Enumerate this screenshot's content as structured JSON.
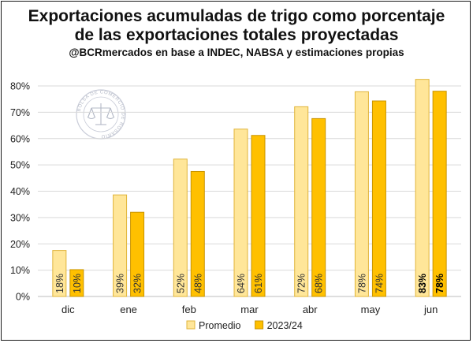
{
  "chart_data": {
    "type": "bar",
    "title_lines": [
      "Exportaciones acumuladas de trigo como porcentaje",
      "de las exportaciones totales proyectadas"
    ],
    "subtitle": "@BCRmercados en base a INDEC, NABSA y estimaciones propias",
    "categories": [
      "dic",
      "ene",
      "feb",
      "mar",
      "abr",
      "may",
      "jun"
    ],
    "series": [
      {
        "name": "Promedio",
        "color": "#FFE699",
        "stroke": "#E0B43A",
        "values": [
          17.5,
          38.6,
          52.2,
          63.6,
          72.1,
          77.8,
          82.5
        ],
        "labels": [
          "18%",
          "39%",
          "52%",
          "64%",
          "72%",
          "78%",
          "83%"
        ]
      },
      {
        "name": "2023/24",
        "color": "#FFC000",
        "stroke": "#C99400",
        "values": [
          10.2,
          32.0,
          47.5,
          61.2,
          67.6,
          74.3,
          78.0
        ],
        "labels": [
          "10%",
          "32%",
          "48%",
          "61%",
          "68%",
          "74%",
          "78%"
        ]
      }
    ],
    "bold_label_categories": [
      "jun"
    ],
    "ylim": [
      0,
      80
    ],
    "yticks": [
      0,
      10,
      20,
      30,
      40,
      50,
      60,
      70,
      80
    ],
    "ytick_labels": [
      "0%",
      "10%",
      "20%",
      "30%",
      "40%",
      "50%",
      "60%",
      "70%",
      "80%"
    ],
    "grid": true,
    "legend_position": "bottom",
    "watermark_text": "BOLSA DE COMERCIO DE ROSARIO"
  }
}
